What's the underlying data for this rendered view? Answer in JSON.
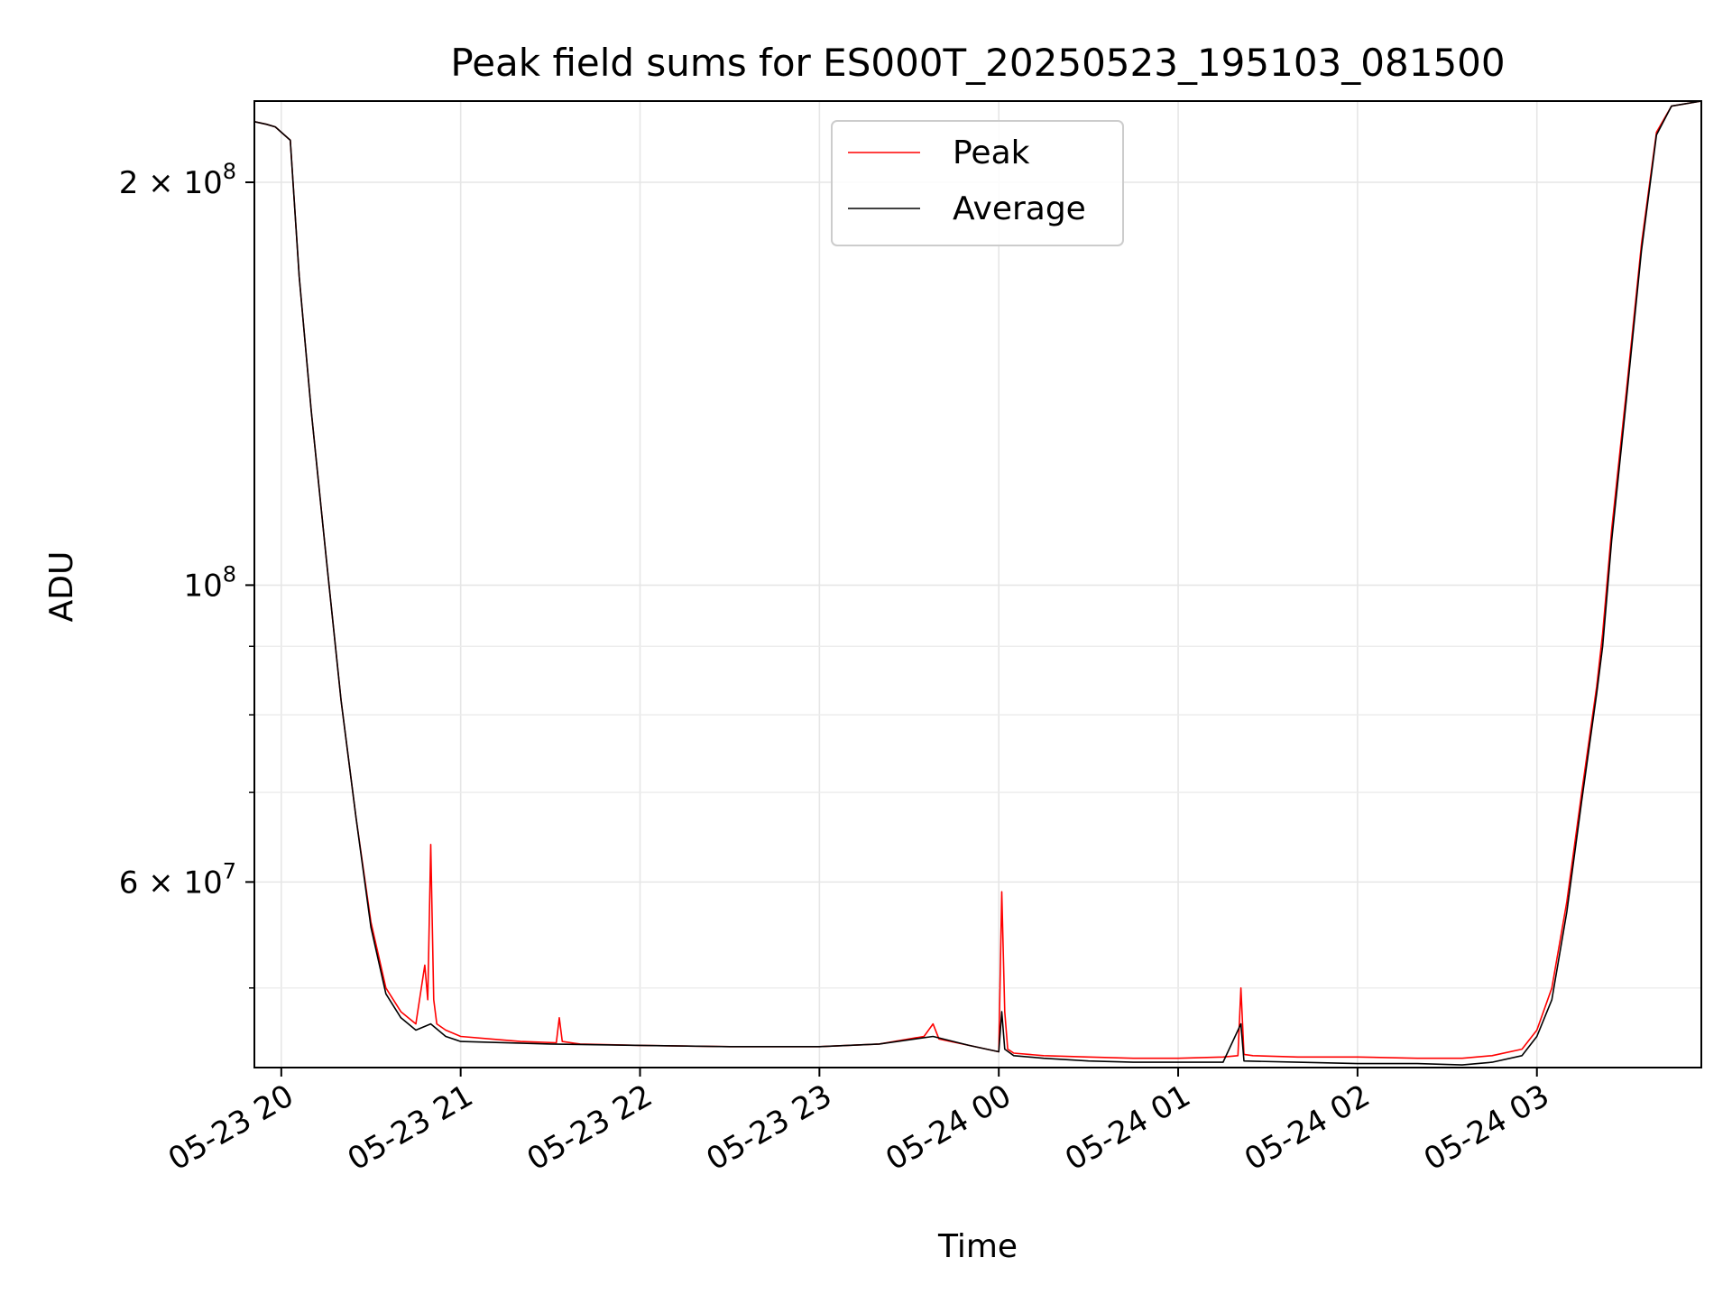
{
  "chart_data": {
    "type": "line",
    "title": "Peak field sums for ES000T_20250523_195103_081500",
    "xlabel": "Time",
    "ylabel": "ADU",
    "yscale": "log",
    "grid": true,
    "legend_position": "top-center",
    "xlim": [
      "2025-05-23 19:51",
      "2025-05-24 03:55"
    ],
    "ylim": [
      43600000,
      230000000
    ],
    "x_ticks": [
      {
        "label": "05-23 20",
        "time": "2025-05-23 20:00"
      },
      {
        "label": "05-23 21",
        "time": "2025-05-23 21:00"
      },
      {
        "label": "05-23 22",
        "time": "2025-05-23 22:00"
      },
      {
        "label": "05-23 23",
        "time": "2025-05-23 23:00"
      },
      {
        "label": "05-24 00",
        "time": "2025-05-24 00:00"
      },
      {
        "label": "05-24 01",
        "time": "2025-05-24 01:00"
      },
      {
        "label": "05-24 02",
        "time": "2025-05-24 02:00"
      },
      {
        "label": "05-24 03",
        "time": "2025-05-24 03:00"
      }
    ],
    "y_ticks": [
      {
        "value": 60000000,
        "mantissa": "6",
        "exponent": "7",
        "times": "×",
        "base": "10"
      },
      {
        "value": 100000000,
        "mantissa": "",
        "exponent": "8",
        "times": "",
        "base": "10"
      },
      {
        "value": 200000000,
        "mantissa": "2",
        "exponent": "8",
        "times": "×",
        "base": "10"
      }
    ],
    "y_minor_ticks": [
      40000000,
      50000000,
      70000000,
      80000000,
      90000000
    ],
    "series": [
      {
        "name": "Peak",
        "color": "#ff0000",
        "x": [
          "2025-05-23 19:51",
          "2025-05-23 19:55",
          "2025-05-23 19:58",
          "2025-05-23 20:00",
          "2025-05-23 20:03",
          "2025-05-23 20:06",
          "2025-05-23 20:10",
          "2025-05-23 20:15",
          "2025-05-23 20:20",
          "2025-05-23 20:25",
          "2025-05-23 20:30",
          "2025-05-23 20:35",
          "2025-05-23 20:40",
          "2025-05-23 20:45",
          "2025-05-23 20:48",
          "2025-05-23 20:49",
          "2025-05-23 20:50",
          "2025-05-23 20:51",
          "2025-05-23 20:52",
          "2025-05-23 20:55",
          "2025-05-23 21:00",
          "2025-05-23 21:10",
          "2025-05-23 21:20",
          "2025-05-23 21:32",
          "2025-05-23 21:33",
          "2025-05-23 21:34",
          "2025-05-23 21:40",
          "2025-05-23 22:00",
          "2025-05-23 22:30",
          "2025-05-23 23:00",
          "2025-05-23 23:20",
          "2025-05-23 23:35",
          "2025-05-23 23:38",
          "2025-05-23 23:40",
          "2025-05-23 23:50",
          "2025-05-24 00:00",
          "2025-05-24 00:01",
          "2025-05-24 00:02",
          "2025-05-24 00:03",
          "2025-05-24 00:05",
          "2025-05-24 00:15",
          "2025-05-24 00:30",
          "2025-05-24 00:45",
          "2025-05-24 01:00",
          "2025-05-24 01:15",
          "2025-05-24 01:20",
          "2025-05-24 01:21",
          "2025-05-24 01:22",
          "2025-05-24 01:25",
          "2025-05-24 01:40",
          "2025-05-24 02:00",
          "2025-05-24 02:20",
          "2025-05-24 02:35",
          "2025-05-24 02:45",
          "2025-05-24 02:55",
          "2025-05-24 03:00",
          "2025-05-24 03:05",
          "2025-05-24 03:10",
          "2025-05-24 03:15",
          "2025-05-24 03:20",
          "2025-05-24 03:22",
          "2025-05-24 03:25",
          "2025-05-24 03:30",
          "2025-05-24 03:35",
          "2025-05-24 03:40",
          "2025-05-24 03:45",
          "2025-05-24 03:55"
        ],
        "y": [
          222000000,
          221000000,
          220000000,
          218000000,
          215000000,
          170000000,
          135000000,
          105000000,
          82000000,
          67000000,
          56000000,
          50000000,
          48000000,
          47000000,
          52000000,
          49000000,
          64000000,
          49000000,
          47000000,
          46500000,
          46000000,
          45800000,
          45600000,
          45500000,
          47500000,
          45600000,
          45400000,
          45300000,
          45200000,
          45200000,
          45400000,
          46000000,
          47000000,
          45800000,
          45300000,
          44800000,
          59000000,
          48000000,
          45000000,
          44700000,
          44500000,
          44400000,
          44300000,
          44300000,
          44400000,
          44500000,
          50000000,
          44600000,
          44500000,
          44400000,
          44400000,
          44300000,
          44300000,
          44500000,
          45000000,
          46500000,
          50000000,
          58000000,
          70000000,
          84000000,
          92000000,
          110000000,
          140000000,
          180000000,
          218000000,
          228000000,
          230000000
        ]
      },
      {
        "name": "Average",
        "color": "#000000",
        "x": [
          "2025-05-23 19:51",
          "2025-05-23 19:55",
          "2025-05-23 19:58",
          "2025-05-23 20:00",
          "2025-05-23 20:03",
          "2025-05-23 20:06",
          "2025-05-23 20:10",
          "2025-05-23 20:15",
          "2025-05-23 20:20",
          "2025-05-23 20:25",
          "2025-05-23 20:30",
          "2025-05-23 20:35",
          "2025-05-23 20:40",
          "2025-05-23 20:45",
          "2025-05-23 20:50",
          "2025-05-23 20:55",
          "2025-05-23 21:00",
          "2025-05-23 21:30",
          "2025-05-23 22:00",
          "2025-05-23 22:30",
          "2025-05-23 23:00",
          "2025-05-23 23:20",
          "2025-05-23 23:38",
          "2025-05-23 23:50",
          "2025-05-24 00:00",
          "2025-05-24 00:01",
          "2025-05-24 00:02",
          "2025-05-24 00:05",
          "2025-05-24 00:15",
          "2025-05-24 00:30",
          "2025-05-24 00:45",
          "2025-05-24 01:00",
          "2025-05-24 01:15",
          "2025-05-24 01:21",
          "2025-05-24 01:22",
          "2025-05-24 01:40",
          "2025-05-24 02:00",
          "2025-05-24 02:20",
          "2025-05-24 02:35",
          "2025-05-24 02:45",
          "2025-05-24 02:55",
          "2025-05-24 03:00",
          "2025-05-24 03:05",
          "2025-05-24 03:10",
          "2025-05-24 03:15",
          "2025-05-24 03:20",
          "2025-05-24 03:22",
          "2025-05-24 03:25",
          "2025-05-24 03:30",
          "2025-05-24 03:35",
          "2025-05-24 03:40",
          "2025-05-24 03:45",
          "2025-05-24 03:55"
        ],
        "y": [
          222000000,
          221000000,
          220000000,
          218000000,
          215000000,
          170000000,
          135000000,
          105000000,
          82000000,
          67000000,
          55500000,
          49500000,
          47500000,
          46500000,
          47000000,
          46000000,
          45600000,
          45400000,
          45300000,
          45200000,
          45200000,
          45400000,
          46000000,
          45300000,
          44800000,
          48000000,
          45000000,
          44500000,
          44300000,
          44100000,
          44000000,
          44000000,
          44000000,
          47000000,
          44100000,
          44000000,
          43900000,
          43900000,
          43800000,
          44000000,
          44500000,
          46000000,
          49000000,
          57000000,
          69000000,
          83000000,
          90000000,
          108000000,
          138000000,
          178000000,
          217000000,
          228000000,
          230000000
        ]
      }
    ]
  }
}
